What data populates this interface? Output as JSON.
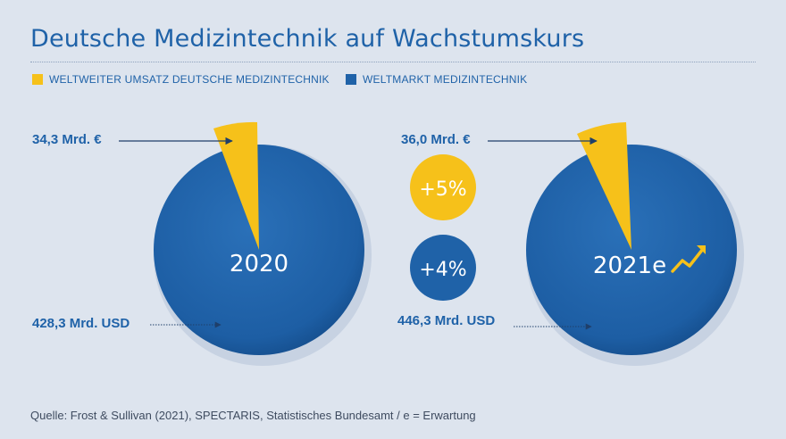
{
  "title": "Deutsche Medizintechnik auf Wachstumskurs",
  "legend": [
    {
      "label": "WELTWEITER UMSATZ DEUTSCHE MEDIZINTECHNIK",
      "color": "#f6c11a"
    },
    {
      "label": "WELTMARKT MEDIZINTECHNIK",
      "color": "#1f62a8"
    }
  ],
  "source": "Quelle: Frost & Sullivan (2021), SPECTARIS, Statistisches Bundesamt  / e = Erwartung",
  "growth": {
    "german": "+5%",
    "world": "+4%"
  },
  "colors": {
    "german": "#f6c11a",
    "world": "#1f62a8",
    "world_dark": "#154a85",
    "label": "#1f62a8"
  },
  "chart_data": [
    {
      "type": "pie",
      "center_label": "2020",
      "slices": [
        {
          "name": "Weltweiter Umsatz deutsche Medizintechnik",
          "value_label": "34,3 Mrd. €"
        },
        {
          "name": "Weltmarkt Medizintechnik",
          "value_label": "428,3 Mrd. USD"
        }
      ]
    },
    {
      "type": "pie",
      "center_label": "2021e",
      "slices": [
        {
          "name": "Weltweiter Umsatz deutsche Medizintechnik",
          "value_label": "36,0 Mrd. €"
        },
        {
          "name": "Weltmarkt Medizintechnik",
          "value_label": "446,3 Mrd. USD"
        }
      ]
    }
  ]
}
